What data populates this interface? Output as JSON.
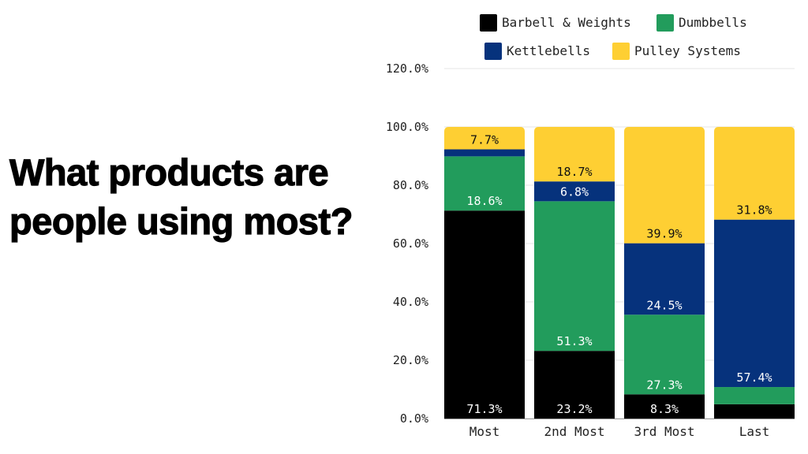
{
  "title": "What products are people using most?",
  "chart_data": {
    "type": "bar",
    "stacked": true,
    "title": "What products are people using most?",
    "xlabel": "",
    "ylabel": "",
    "categories": [
      "Most",
      "2nd Most",
      "3rd Most",
      "Last"
    ],
    "series": [
      {
        "name": "Barbell & Weights",
        "color": "#000000",
        "label_color": "#ffffff",
        "values": [
          71.3,
          23.2,
          8.3,
          4.9
        ],
        "labels": [
          "71.3%",
          "23.2%",
          "8.3%",
          null
        ]
      },
      {
        "name": "Dumbbells",
        "color": "#229c5c",
        "label_color": "#ffffff",
        "values": [
          18.6,
          51.3,
          27.3,
          5.9
        ],
        "labels": [
          "18.6%",
          "51.3%",
          "27.3%",
          null
        ]
      },
      {
        "name": "Kettlebells",
        "color": "#06327c",
        "label_color": "#ffffff",
        "values": [
          2.4,
          6.8,
          24.5,
          57.4
        ],
        "labels": [
          null,
          "6.8%",
          "24.5%",
          "57.4%"
        ]
      },
      {
        "name": "Pulley Systems",
        "color": "#fecf33",
        "label_color": "#111111",
        "values": [
          7.7,
          18.7,
          39.9,
          31.8
        ],
        "labels": [
          "7.7%",
          "18.7%",
          "39.9%",
          "31.8%"
        ]
      }
    ],
    "ylim": [
      0,
      120
    ],
    "yticks": [
      "0.0%",
      "20.0%",
      "40.0%",
      "60.0%",
      "80.0%",
      "100.0%",
      "120.0%"
    ],
    "grid": true,
    "legend_position": "top"
  }
}
